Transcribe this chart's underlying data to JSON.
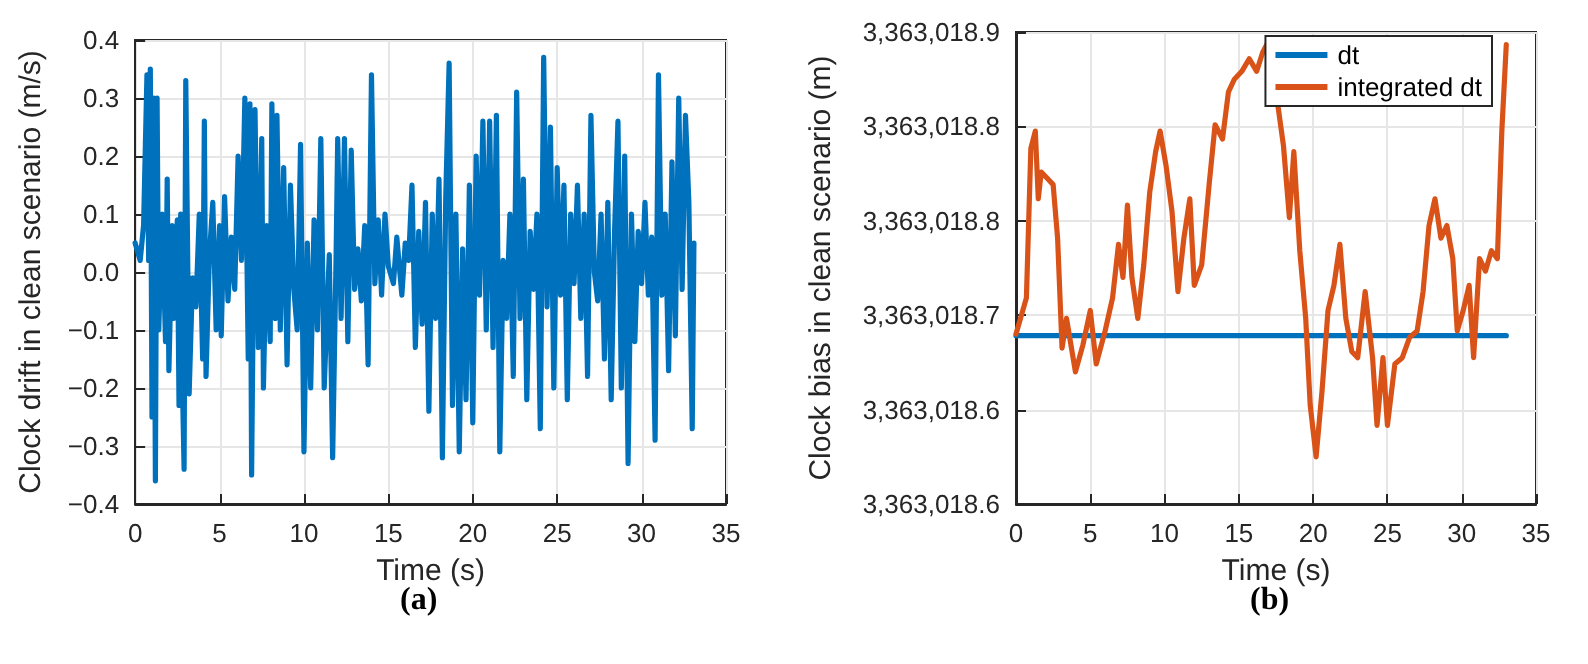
{
  "chart_data": [
    {
      "type": "line",
      "xlabel": "Time (s)",
      "ylabel": "Clock drift in clean scenario (m/s)",
      "annotations": [
        "(a)"
      ],
      "xlim": [
        0,
        35
      ],
      "xticks": [
        0,
        5,
        10,
        15,
        20,
        25,
        30,
        35
      ],
      "ylim": [
        -0.4,
        0.4
      ],
      "yticks": [
        {
          "value": -0.4,
          "label": "−0.4"
        },
        {
          "value": -0.3,
          "label": "−0.3"
        },
        {
          "value": -0.2,
          "label": "−0.2"
        },
        {
          "value": -0.1,
          "label": "−0.1"
        },
        {
          "value": 0,
          "label": "0.0"
        },
        0.1,
        0.2,
        0.3,
        0.4
      ],
      "grid": true,
      "legend": false,
      "marker": "none",
      "line_style": "solid",
      "series": [
        {
          "color": "#0072bd",
          "x": [
            0,
            0.3,
            0.5,
            0.7,
            0.8,
            0.9,
            1.0,
            1.1,
            1.2,
            1.3,
            1.4,
            1.6,
            1.8,
            1.9,
            2.0,
            2.2,
            2.3,
            2.5,
            2.6,
            2.7,
            2.8,
            2.9,
            3.0,
            3.2,
            3.4,
            3.6,
            3.8,
            4.0,
            4.1,
            4.2,
            4.4,
            4.6,
            4.8,
            5.0,
            5.1,
            5.3,
            5.5,
            5.7,
            5.9,
            6.1,
            6.3,
            6.5,
            6.7,
            6.8,
            6.9,
            7.1,
            7.3,
            7.5,
            7.6,
            7.8,
            8.0,
            8.1,
            8.3,
            8.4,
            8.6,
            8.8,
            9.0,
            9.2,
            9.4,
            9.6,
            9.8,
            10.0,
            10.2,
            10.4,
            10.6,
            10.8,
            11.0,
            11.2,
            11.5,
            11.7,
            11.9,
            12.0,
            12.2,
            12.4,
            12.6,
            12.8,
            13.0,
            13.2,
            13.4,
            13.6,
            13.8,
            14.0,
            14.2,
            14.4,
            14.6,
            14.8,
            15.0,
            15.3,
            15.5,
            15.8,
            16.0,
            16.2,
            16.4,
            16.6,
            16.8,
            17.0,
            17.2,
            17.4,
            17.6,
            17.8,
            18.0,
            18.2,
            18.4,
            18.6,
            18.8,
            19.0,
            19.2,
            19.4,
            19.6,
            19.8,
            20.0,
            20.2,
            20.4,
            20.6,
            20.8,
            21.0,
            21.2,
            21.4,
            21.6,
            21.8,
            22.0,
            22.2,
            22.4,
            22.6,
            22.8,
            23.0,
            23.2,
            23.4,
            23.6,
            23.8,
            24.0,
            24.2,
            24.4,
            24.6,
            24.8,
            25.0,
            25.2,
            25.4,
            25.6,
            25.8,
            26.0,
            26.2,
            26.4,
            26.6,
            26.8,
            27.0,
            27.2,
            27.4,
            27.6,
            27.8,
            28.0,
            28.2,
            28.4,
            28.6,
            28.8,
            29.0,
            29.2,
            29.4,
            29.6,
            29.8,
            30.0,
            30.2,
            30.4,
            30.6,
            30.8,
            31.0,
            31.2,
            31.4,
            31.6,
            31.8,
            32.0,
            32.2,
            32.4,
            32.6,
            32.8,
            33.0,
            33.1
          ],
          "values": [
            0.05,
            0.02,
            0.08,
            0.34,
            0.02,
            0.35,
            -0.25,
            0.3,
            -0.36,
            0.3,
            -0.1,
            0.1,
            -0.12,
            0.16,
            -0.17,
            0.08,
            -0.08,
            0.09,
            -0.23,
            0.1,
            -0.19,
            -0.34,
            0.33,
            -0.21,
            -0.01,
            -0.06,
            0.1,
            -0.15,
            0.26,
            -0.18,
            0.03,
            0.12,
            -0.1,
            0.08,
            -0.11,
            0.13,
            -0.05,
            0.06,
            -0.03,
            0.2,
            0.02,
            0.3,
            -0.15,
            0.29,
            -0.35,
            0.28,
            -0.13,
            0.23,
            -0.2,
            0.08,
            -0.12,
            0.29,
            -0.08,
            0.27,
            -0.1,
            0.18,
            -0.16,
            0.15,
            -0.03,
            -0.1,
            0.22,
            -0.31,
            0.05,
            -0.2,
            0.09,
            -0.1,
            0.23,
            -0.2,
            0.03,
            -0.32,
            0.02,
            0.23,
            -0.08,
            0.23,
            -0.12,
            0.21,
            -0.03,
            0.04,
            -0.05,
            0.08,
            -0.16,
            0.34,
            -0.02,
            0.09,
            -0.04,
            0.1,
            0.01,
            -0.02,
            0.06,
            -0.04,
            0.05,
            0.02,
            0.15,
            -0.13,
            0.07,
            -0.09,
            0.12,
            -0.24,
            0.1,
            -0.08,
            0.16,
            -0.32,
            0.13,
            0.36,
            -0.23,
            0.1,
            -0.31,
            0.04,
            -0.22,
            0.15,
            -0.26,
            0.2,
            -0.04,
            0.26,
            -0.1,
            0.26,
            -0.13,
            0.27,
            -0.31,
            0.02,
            -0.08,
            0.1,
            -0.18,
            0.31,
            -0.08,
            0.16,
            -0.22,
            0.07,
            -0.03,
            0.1,
            -0.27,
            0.37,
            -0.06,
            0.25,
            -0.2,
            0.18,
            -0.04,
            0.15,
            -0.22,
            0.1,
            -0.02,
            0.15,
            -0.08,
            0.1,
            -0.18,
            0.27,
            0.0,
            -0.05,
            0.1,
            -0.15,
            0.12,
            -0.22,
            0.07,
            0.26,
            -0.2,
            0.2,
            -0.33,
            0.1,
            -0.12,
            0.07,
            -0.02,
            0.12,
            -0.04,
            0.06,
            -0.29,
            0.34,
            -0.04,
            0.1,
            -0.17,
            0.19,
            -0.11,
            0.3,
            -0.03,
            0.27,
            0.12,
            -0.27,
            0.05
          ]
        }
      ]
    },
    {
      "type": "line",
      "xlabel": "Time (s)",
      "ylabel": "Clock bias in clean scenario (m)",
      "annotations": [
        "(b)"
      ],
      "xlim": [
        0,
        35
      ],
      "xticks": [
        0,
        5,
        10,
        15,
        20,
        25,
        30,
        35
      ],
      "ylim": [
        3363018.58,
        3363018.88
      ],
      "yticks": [
        {
          "value": 3363018.58,
          "label": "3,363,018.6"
        },
        {
          "value": 3363018.64,
          "label": "3,363,018.6"
        },
        {
          "value": 3363018.7,
          "label": "3,363,018.7"
        },
        {
          "value": 3363018.76,
          "label": "3,363,018.8"
        },
        {
          "value": 3363018.82,
          "label": "3,363,018.8"
        },
        {
          "value": 3363018.88,
          "label": "3,363,018.9"
        }
      ],
      "grid": true,
      "legend": "top right",
      "marker": "none",
      "line_style": "solid",
      "series": [
        {
          "name": "dt",
          "color": "#0072bd",
          "x": [
            0,
            33
          ],
          "values": [
            3363018.687,
            3363018.687
          ]
        },
        {
          "name": "integrated dt",
          "color": "#d95319",
          "x": [
            0,
            0.7,
            1.0,
            1.3,
            1.5,
            1.7,
            2.1,
            2.5,
            2.8,
            3.1,
            3.4,
            4.0,
            4.5,
            5.0,
            5.4,
            6.0,
            6.5,
            6.9,
            7.2,
            7.5,
            7.8,
            8.2,
            8.6,
            9.0,
            9.4,
            9.7,
            10.1,
            10.5,
            10.9,
            11.3,
            11.7,
            12.0,
            12.5,
            13.0,
            13.4,
            13.9,
            14.3,
            14.7,
            15.2,
            15.7,
            16.2,
            16.6,
            17.1,
            17.5,
            18.0,
            18.4,
            18.7,
            19.1,
            19.5,
            19.8,
            20.2,
            20.6,
            21.0,
            21.4,
            21.8,
            22.2,
            22.6,
            23.0,
            23.5,
            24.0,
            24.3,
            24.7,
            25.0,
            25.5,
            26.0,
            26.5,
            27.0,
            27.4,
            27.8,
            28.2,
            28.6,
            29.0,
            29.4,
            29.7,
            30.1,
            30.5,
            30.8,
            31.2,
            31.6,
            32.0,
            32.4,
            32.7,
            33.0
          ],
          "values": [
            3363018.688,
            3363018.711,
            3363018.806,
            3363018.817,
            3363018.774,
            3363018.791,
            3363018.787,
            3363018.783,
            3363018.749,
            3363018.679,
            3363018.698,
            3363018.664,
            3363018.681,
            3363018.703,
            3363018.669,
            3363018.69,
            3363018.711,
            3363018.745,
            3363018.724,
            3363018.77,
            3363018.724,
            3363018.698,
            3363018.732,
            3363018.778,
            3363018.804,
            3363018.817,
            3363018.795,
            3363018.766,
            3363018.715,
            3363018.749,
            3363018.774,
            3363018.719,
            3363018.732,
            3363018.783,
            3363018.821,
            3363018.812,
            3363018.842,
            3363018.85,
            3363018.855,
            3363018.863,
            3363018.855,
            3363018.867,
            3363018.876,
            3363018.842,
            3363018.808,
            3363018.762,
            3363018.804,
            3363018.741,
            3363018.698,
            3363018.643,
            3363018.61,
            3363018.652,
            3363018.703,
            3363018.719,
            3363018.745,
            3363018.698,
            3363018.677,
            3363018.673,
            3363018.715,
            3363018.673,
            3363018.63,
            3363018.673,
            3363018.63,
            3363018.669,
            3363018.673,
            3363018.686,
            3363018.69,
            3363018.715,
            3363018.757,
            3363018.774,
            3363018.749,
            3363018.757,
            3363018.736,
            3363018.69,
            3363018.703,
            3363018.719,
            3363018.673,
            3363018.736,
            3363018.728,
            3363018.741,
            3363018.736,
            3363018.817,
            3363018.872
          ]
        }
      ]
    }
  ]
}
